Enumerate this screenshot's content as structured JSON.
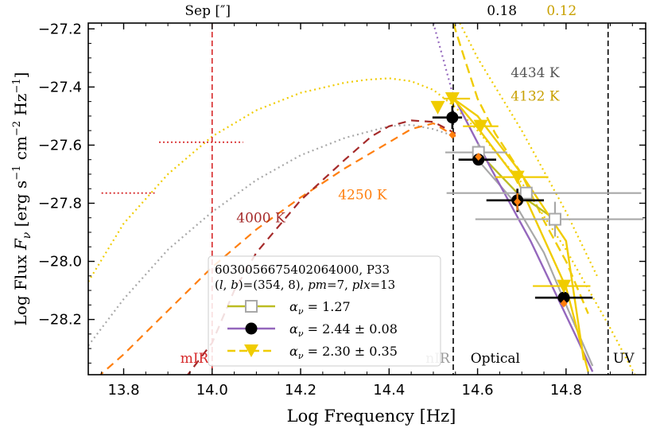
{
  "chart_data": {
    "type": "scatter",
    "xlabel": "Log Frequency [Hz]",
    "ylabel": "Log Flux F_ν [erg s^-1 cm^-2 Hz^-1]",
    "ylabel_parts": {
      "pre": "Log Flux ",
      "F": "F",
      "nu": "ν",
      "unit_a": " [erg s",
      "exp1": "−1",
      "unit_b": " cm",
      "exp2": "−2",
      "unit_c": " Hz",
      "exp3": "−1",
      "close": "]"
    },
    "xlim": [
      13.72,
      14.98
    ],
    "ylim": [
      -28.39,
      -27.18
    ],
    "xticks": [
      13.8,
      14.0,
      14.2,
      14.4,
      14.6,
      14.8
    ],
    "xtick_labels": [
      "13.8",
      "14.0",
      "14.2",
      "14.4",
      "14.6",
      "14.8"
    ],
    "yticks": [
      -27.2,
      -27.4,
      -27.6,
      -27.8,
      -28.0,
      -28.2
    ],
    "ytick_labels": [
      "−27.2",
      "−27.4",
      "−27.6",
      "−27.8",
      "−28.0",
      "−28.2"
    ],
    "colors": {
      "gray": "#a8a8a8",
      "olive": "#bcbd22",
      "purple": "#9467bd",
      "black": "#000000",
      "gold": "#f0cc00",
      "orange": "#ff7f0e",
      "brown": "#a52a2a",
      "red": "#d62728",
      "darkgold": "#c8a000",
      "darkgray": "#555555"
    },
    "band_lines": [
      {
        "x": 14.0,
        "color": "#d62728"
      },
      {
        "x": 14.545,
        "color": "#000000"
      },
      {
        "x": 14.895,
        "color": "#000000"
      }
    ],
    "band_labels": [
      {
        "text": "mIR",
        "x": 13.96,
        "color": "#d62728"
      },
      {
        "text": "nIR",
        "x": 14.51,
        "color": "#999999"
      },
      {
        "text": "Optical",
        "x": 14.64,
        "color": "#000000"
      },
      {
        "text": "UV",
        "x": 14.93,
        "color": "#000000"
      }
    ],
    "top_labels": [
      {
        "text": "Sep [″]",
        "x": 13.99,
        "color": "#000000"
      },
      {
        "text": "0.18",
        "x": 14.655,
        "color": "#000000"
      },
      {
        "text": "0.12",
        "x": 14.79,
        "color": "#c8a000"
      }
    ],
    "temperature_labels": [
      {
        "text": "4434 K",
        "x": 14.73,
        "y": -27.35,
        "color": "#555555"
      },
      {
        "text": "4132 K",
        "x": 14.73,
        "y": -27.43,
        "color": "#c8a000"
      },
      {
        "text": "4250 K",
        "x": 14.34,
        "y": -27.77,
        "color": "#ff7f0e"
      },
      {
        "text": "4000 K",
        "x": 14.11,
        "y": -27.85,
        "color": "#a52a2a"
      }
    ],
    "upper_limit_segments": [
      {
        "x": [
          13.88,
          14.07
        ],
        "y": -27.59,
        "color": "#d62728"
      },
      {
        "x": [
          13.75,
          13.87
        ],
        "y": -27.765,
        "color": "#d62728"
      }
    ],
    "curves": [
      {
        "name": "gold dotted 4132 K",
        "color": "#f0cc00",
        "dash": "2,4",
        "width": 2.2,
        "x": [
          13.72,
          13.8,
          13.9,
          14.0,
          14.1,
          14.2,
          14.3,
          14.35,
          14.4,
          14.45,
          14.5,
          14.55,
          14.6,
          14.7,
          14.8,
          14.9,
          14.98
        ],
        "y": [
          -28.07,
          -27.87,
          -27.7,
          -27.57,
          -27.48,
          -27.42,
          -27.385,
          -27.375,
          -27.37,
          -27.38,
          -27.41,
          -27.47,
          -27.55,
          -27.73,
          -27.96,
          -28.23,
          -28.46
        ]
      },
      {
        "name": "gray dotted 4434 K",
        "color": "#a8a8a8",
        "dash": "2,4",
        "width": 2.2,
        "x": [
          13.72,
          13.8,
          13.9,
          14.0,
          14.1,
          14.2,
          14.3,
          14.35,
          14.4,
          14.45,
          14.5,
          14.55
        ],
        "y": [
          -28.29,
          -28.13,
          -27.96,
          -27.83,
          -27.72,
          -27.635,
          -27.575,
          -27.555,
          -27.535,
          -27.53,
          -27.545,
          -27.57
        ]
      },
      {
        "name": "orange dashed 4250 K",
        "color": "#ff7f0e",
        "dash": "10,7",
        "width": 2.2,
        "x": [
          13.74,
          13.8,
          13.9,
          14.0,
          14.1,
          14.2,
          14.3,
          14.4,
          14.45,
          14.5,
          14.55
        ],
        "y": [
          -28.4,
          -28.32,
          -28.17,
          -28.02,
          -27.89,
          -27.78,
          -27.68,
          -27.59,
          -27.545,
          -27.525,
          -27.57
        ]
      },
      {
        "name": "brown dashed 4000 K",
        "color": "#a52a2a",
        "dash": "10,7",
        "width": 2.2,
        "x": [
          13.94,
          14.0,
          14.05,
          14.1,
          14.2,
          14.3,
          14.36,
          14.4,
          14.45,
          14.5,
          14.55
        ],
        "y": [
          -28.4,
          -28.28,
          -28.1,
          -27.97,
          -27.79,
          -27.65,
          -27.57,
          -27.535,
          -27.515,
          -27.52,
          -27.56
        ]
      },
      {
        "name": "purple dotted extension",
        "color": "#9467bd",
        "dash": "2,4",
        "width": 2.2,
        "x": [
          14.5,
          14.545
        ],
        "y": [
          -27.18,
          -27.43
        ]
      },
      {
        "name": "gold dashed extension",
        "color": "#f0cc00",
        "dash": "12,6",
        "width": 2.4,
        "x": [
          14.545,
          14.57,
          14.6,
          14.64,
          14.7,
          14.75,
          14.8,
          14.85
        ],
        "y": [
          -27.18,
          -27.3,
          -27.44,
          -27.56,
          -27.7,
          -27.86,
          -28.0,
          -28.18
        ]
      },
      {
        "name": "gold dotted extension",
        "color": "#f0cc00",
        "dash": "2,4",
        "width": 2.2,
        "x": [
          14.56,
          14.6,
          14.7,
          14.8,
          14.87
        ],
        "y": [
          -27.18,
          -27.3,
          -27.55,
          -27.83,
          -28.05
        ]
      }
    ],
    "fit_lines": [
      {
        "name": "gray fit",
        "color": "#a8a8a8",
        "width": 2.2,
        "x": [
          14.6,
          14.68,
          14.75,
          14.8,
          14.86
        ],
        "y": [
          -27.65,
          -27.79,
          -27.97,
          -28.15,
          -28.36
        ]
      },
      {
        "name": "olive fit α=1.27",
        "color": "#bcbd22",
        "width": 2.4,
        "x": [
          14.602,
          14.69,
          14.775
        ],
        "y": [
          -27.625,
          -27.765,
          -27.855
        ]
      },
      {
        "name": "purple fit α=2.44",
        "color": "#9467bd",
        "width": 2.4,
        "x": [
          14.545,
          14.63,
          14.72,
          14.82,
          14.86
        ],
        "y": [
          -27.43,
          -27.68,
          -27.93,
          -28.25,
          -28.38
        ]
      },
      {
        "name": "gold fit α=2.30",
        "color": "#f0cc00",
        "width": 2.4,
        "x": [
          14.545,
          14.6,
          14.69,
          14.8,
          14.85
        ],
        "y": [
          -27.44,
          -27.54,
          -27.72,
          -28.09,
          -28.38
        ]
      },
      {
        "name": "gold fit alt",
        "color": "#f0cc00",
        "width": 2.4,
        "x": [
          14.545,
          14.6,
          14.69,
          14.8,
          14.84
        ],
        "y": [
          -27.44,
          -27.5,
          -27.68,
          -27.93,
          -28.34
        ]
      }
    ],
    "series": [
      {
        "name": "α_ν = 1.27",
        "marker": "square",
        "color": "#a8a8a8",
        "points": [
          {
            "x": 14.602,
            "y": -27.625,
            "xerr": [
              0.075,
              0.065
            ],
            "yerr": 0.03
          },
          {
            "x": 14.71,
            "y": -27.765,
            "xerr": [
              0.18,
              0.26
            ],
            "yerr": 0.02
          },
          {
            "x": 14.775,
            "y": -27.855,
            "xerr": [
              0.18,
              0.2
            ],
            "yerr": 0.06
          }
        ]
      },
      {
        "name": "α_ν = 2.44 ± 0.08",
        "marker": "circle",
        "color": "#000000",
        "points": [
          {
            "x": 14.543,
            "y": -27.505,
            "xerr": [
              0.045,
              0.022
            ],
            "yerr": 0.04
          },
          {
            "x": 14.602,
            "y": -27.65,
            "xerr": [
              0.045,
              0.04
            ],
            "yerr": 0.02
          },
          {
            "x": 14.69,
            "y": -27.79,
            "xerr": [
              0.07,
              0.06
            ],
            "yerr": 0.04
          },
          {
            "x": 14.795,
            "y": -28.125,
            "xerr": [
              0.065,
              0.065
            ],
            "yerr": 0.02
          }
        ]
      },
      {
        "name": "α_ν = 2.30 ± 0.35",
        "marker": "triangle-down",
        "color": "#f0cc00",
        "points": [
          {
            "x": 14.51,
            "y": -27.47,
            "xerr": [
              0.0,
              0.0
            ],
            "yerr": 0.0
          },
          {
            "x": 14.543,
            "y": -27.44,
            "xerr": [
              0.02,
              0.04
            ],
            "yerr": 0.0
          },
          {
            "x": 14.607,
            "y": -27.535,
            "xerr": [
              0.04,
              0.04
            ],
            "yerr": 0.0
          },
          {
            "x": 14.69,
            "y": -27.71,
            "xerr": [
              0.05,
              0.07
            ],
            "yerr": 0.0
          },
          {
            "x": 14.795,
            "y": -28.085,
            "xerr": [
              0.07,
              0.06
            ],
            "yerr": 0.0
          }
        ]
      },
      {
        "name": "orange markers",
        "marker": "diamond",
        "color": "#ff7f0e",
        "points": [
          {
            "x": 14.543,
            "y": -27.565,
            "xerr": [
              0.0,
              0.0
            ],
            "yerr": 0.0
          },
          {
            "x": 14.602,
            "y": -27.64,
            "xerr": [
              0.0,
              0.0
            ],
            "yerr": 0.0
          },
          {
            "x": 14.69,
            "y": -27.795,
            "xerr": [
              0.0,
              0.0
            ],
            "yerr": 0.03
          },
          {
            "x": 14.795,
            "y": -28.145,
            "xerr": [
              0.0,
              0.0
            ],
            "yerr": 0.0
          }
        ]
      }
    ],
    "legend": {
      "location": "bottom-center",
      "title_line1": "6030056675402064000, P33",
      "title_line2": "(l, b)=(354, 8), pm=7, plx=13",
      "title_line2_parts": {
        "l": "l",
        "b": "b",
        "coords": ")=(354, 8), ",
        "pm": "pm",
        "pm_val": "=7, ",
        "plx": "plx",
        "plx_val": "=13"
      },
      "entries": [
        {
          "label": "1.27",
          "prefix": "α",
          "sub": "ν",
          "eq": " = ",
          "marker": "square",
          "line_color": "#bcbd22",
          "marker_color": "#a8a8a8",
          "dashed": false
        },
        {
          "label": "2.44 ± 0.08",
          "prefix": "α",
          "sub": "ν",
          "eq": " = ",
          "marker": "circle",
          "line_color": "#9467bd",
          "marker_color": "#000000",
          "dashed": false
        },
        {
          "label": "2.30 ± 0.35",
          "prefix": "α",
          "sub": "ν",
          "eq": " = ",
          "marker": "triangle-down",
          "line_color": "#f0cc00",
          "marker_color": "#f0cc00",
          "dashed": true
        }
      ]
    }
  }
}
